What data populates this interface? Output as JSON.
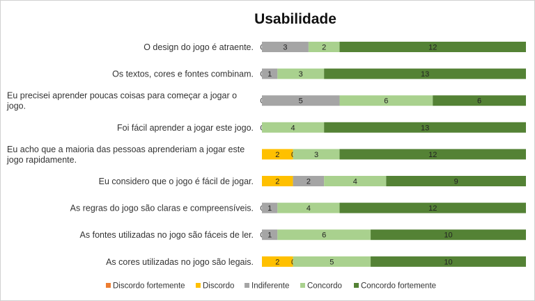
{
  "chart_data": {
    "type": "bar",
    "orientation": "horizontal",
    "stacked": true,
    "title": "Usabilidade",
    "categories": [
      "O design do jogo é atraente.",
      "Os textos, cores e fontes combinam.",
      "Eu precisei aprender poucas coisas para começar a jogar o jogo.",
      "Foi fácil aprender a jogar este jogo.",
      "Eu acho que a maioria das pessoas aprenderiam a jogar este jogo rapidamente.",
      "Eu considero que o jogo é fácil de jogar.",
      "As regras do jogo são claras e compreensíveis.",
      "As fontes utilizadas no jogo são fáceis de ler.",
      "As cores utilizadas no jogo são legais."
    ],
    "category_lines": [
      [
        "O design do jogo é atraente."
      ],
      [
        "Os textos, cores e fontes combinam."
      ],
      [
        "Eu precisei aprender poucas coisas para começar a jogar o",
        "jogo."
      ],
      [
        "Foi fácil aprender a jogar este jogo."
      ],
      [
        "Eu acho que a maioria das pessoas aprenderiam a jogar este",
        "jogo rapidamente."
      ],
      [
        "Eu considero que o jogo é fácil de jogar."
      ],
      [
        "As regras do jogo são claras e compreensíveis."
      ],
      [
        "As fontes utilizadas no jogo são fáceis de ler."
      ],
      [
        "As cores utilizadas no jogo são legais."
      ]
    ],
    "series": [
      {
        "name": "Discordo fortemente",
        "color": "#ed7d31",
        "values": [
          null,
          null,
          null,
          null,
          null,
          null,
          null,
          null,
          null
        ]
      },
      {
        "name": "Discordo",
        "color": "#ffc000",
        "values": [
          0,
          0,
          0,
          0,
          2,
          2,
          0,
          0,
          2
        ]
      },
      {
        "name": "Indiferente",
        "color": "#a5a5a5",
        "values": [
          3,
          1,
          5,
          null,
          0,
          2,
          1,
          1,
          0
        ]
      },
      {
        "name": "Concordo",
        "color": "#a9d18e",
        "values": [
          2,
          3,
          6,
          4,
          3,
          4,
          4,
          6,
          5
        ]
      },
      {
        "name": "Concordo fortemente",
        "color": "#548235",
        "values": [
          12,
          13,
          6,
          13,
          12,
          9,
          12,
          10,
          10
        ]
      }
    ],
    "xlim": [
      0,
      17
    ],
    "grid": false,
    "legend_position": "bottom"
  }
}
